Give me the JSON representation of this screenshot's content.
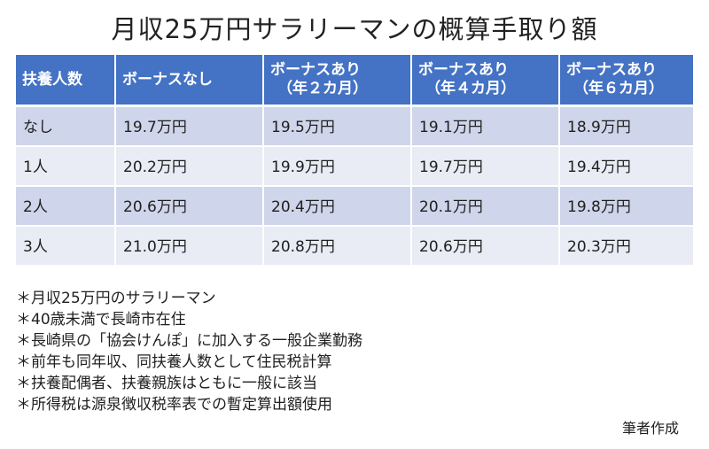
{
  "title": "月収25万円サラリーマンの概算手取り額",
  "table": {
    "headers": [
      {
        "line1": "扶養人数",
        "line2": ""
      },
      {
        "line1": "ボーナスなし",
        "line2": ""
      },
      {
        "line1": "ボーナスあり",
        "line2": "（年２カ月）"
      },
      {
        "line1": "ボーナスあり",
        "line2": "（年４カ月）"
      },
      {
        "line1": "ボーナスあり",
        "line2": "（年６カ月）"
      }
    ],
    "rows": [
      [
        "なし",
        "19.7万円",
        "19.5万円",
        "19.1万円",
        "18.9万円"
      ],
      [
        "1人",
        "20.2万円",
        "19.9万円",
        "19.7万円",
        "19.4万円"
      ],
      [
        "2人",
        "20.6万円",
        "20.4万円",
        "20.1万円",
        "19.8万円"
      ],
      [
        "3人",
        "21.0万円",
        "20.8万円",
        "20.6万円",
        "20.3万円"
      ]
    ]
  },
  "notes": [
    "＊月収25万円のサラリーマン",
    "＊40歳未満で長崎市在住",
    "＊長崎県の「協会けんぽ」に加入する一般企業勤務",
    "＊前年も同年収、同扶養人数として住民税計算",
    "＊扶養配偶者、扶養親族はともに一般に該当",
    "＊所得税は源泉徴収税率表での暫定算出額使用"
  ],
  "credit": "筆者作成",
  "colors": {
    "header_bg": "#4472c4",
    "row_dark": "#cfd5ea",
    "row_light": "#e9ebf5"
  }
}
